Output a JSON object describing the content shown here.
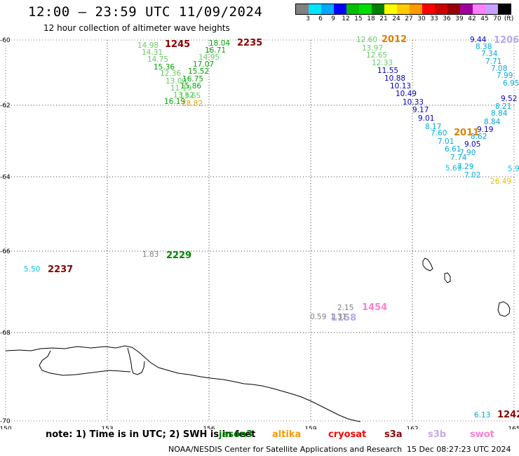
{
  "title": "12:00 – 23:59 UTC 11/09/2024",
  "subtitle": "12 hour collection of altimeter wave heights",
  "legend": {
    "colors": [
      "#808080",
      "#00e5ff",
      "#00aaff",
      "#0000ff",
      "#00c000",
      "#00e000",
      "#008000",
      "#ffff00",
      "#ffcc00",
      "#ff9900",
      "#ff0000",
      "#cc0000",
      "#990000",
      "#a000a0",
      "#ff80ff",
      "#c8a0ff",
      "#000000"
    ],
    "ticks": [
      "3",
      "6",
      "9",
      "12",
      "15",
      "18",
      "21",
      "24",
      "27",
      "30",
      "33",
      "36",
      "39",
      "42",
      "45",
      "70"
    ],
    "unit": "(ft)"
  },
  "map": {
    "lon_ticks": [
      "150",
      "153",
      "156",
      "159",
      "162",
      "165"
    ],
    "lat_ticks": [
      "-60",
      "-62",
      "-64",
      "-66",
      "-68",
      "-70"
    ]
  },
  "passes": [
    {
      "label": "1245",
      "color": "#8b0000"
    },
    {
      "label": "2235",
      "color": "#8b0000"
    },
    {
      "label": "2012",
      "color": "#e08000"
    },
    {
      "label": "1206",
      "color": "#b8a8e8"
    },
    {
      "label": "2011",
      "color": "#e08000"
    },
    {
      "label": "2229",
      "color": "#008000"
    },
    {
      "label": "2237",
      "color": "#8b0000"
    },
    {
      "label": "1454",
      "color": "#ff80d0"
    },
    {
      "label": "1158",
      "color": "#b8a8e8"
    },
    {
      "label": "1242",
      "color": "#8b0000"
    }
  ],
  "track_values": [
    {
      "v": "14.98",
      "c": "#66cc66"
    },
    {
      "v": "14.31",
      "c": "#66cc66"
    },
    {
      "v": "14.75",
      "c": "#66cc66"
    },
    {
      "v": "15.36",
      "c": "#00a000"
    },
    {
      "v": "12.36",
      "c": "#66cc66"
    },
    {
      "v": "13.00",
      "c": "#66cc66"
    },
    {
      "v": "11.19",
      "c": "#66cc66"
    },
    {
      "v": "13.62",
      "c": "#66cc66"
    },
    {
      "v": "16.19",
      "c": "#00a000"
    },
    {
      "v": "18.04",
      "c": "#00a000"
    },
    {
      "v": "16.71",
      "c": "#00a000"
    },
    {
      "v": "14.95",
      "c": "#66cc66"
    },
    {
      "v": "17.07",
      "c": "#00a000"
    },
    {
      "v": "15.52",
      "c": "#00a000"
    },
    {
      "v": "16.75",
      "c": "#00a000"
    },
    {
      "v": "15.86",
      "c": "#00a000"
    },
    {
      "v": "13.65",
      "c": "#66cc66"
    },
    {
      "v": "28.82",
      "c": "#e0a000"
    },
    {
      "v": "12.60",
      "c": "#66cc66"
    },
    {
      "v": "13.97",
      "c": "#66cc66"
    },
    {
      "v": "12.65",
      "c": "#66cc66"
    },
    {
      "v": "12.33",
      "c": "#66cc66"
    },
    {
      "v": "11.55",
      "c": "#0000c0"
    },
    {
      "v": "10.88",
      "c": "#0000c0"
    },
    {
      "v": "10.13",
      "c": "#0000c0"
    },
    {
      "v": "10.49",
      "c": "#0000c0"
    },
    {
      "v": "10.33",
      "c": "#0000c0"
    },
    {
      "v": "9.17",
      "c": "#0000c0"
    },
    {
      "v": "9.01",
      "c": "#0000c0"
    },
    {
      "v": "8.17",
      "c": "#00aadd"
    },
    {
      "v": "7.60",
      "c": "#00aadd"
    },
    {
      "v": "7.01",
      "c": "#00aadd"
    },
    {
      "v": "6.61",
      "c": "#00aadd"
    },
    {
      "v": "7.74",
      "c": "#00aadd"
    },
    {
      "v": "5.69",
      "c": "#00c8e8"
    },
    {
      "v": "7.02",
      "c": "#00aadd"
    },
    {
      "v": "9.44",
      "c": "#0000c0"
    },
    {
      "v": "8.38",
      "c": "#00aadd"
    },
    {
      "v": "7.34",
      "c": "#00aadd"
    },
    {
      "v": "7.71",
      "c": "#00aadd"
    },
    {
      "v": "7.08",
      "c": "#00aadd"
    },
    {
      "v": "7.99",
      "c": "#00aadd"
    },
    {
      "v": "6.95",
      "c": "#00aadd"
    },
    {
      "v": "9.52",
      "c": "#0000c0"
    },
    {
      "v": "8.21",
      "c": "#00aadd"
    },
    {
      "v": "8.84",
      "c": "#00aadd"
    },
    {
      "v": "8.84",
      "c": "#00aadd"
    },
    {
      "v": "9.19",
      "c": "#0000c0"
    },
    {
      "v": "8.62",
      "c": "#00aadd"
    },
    {
      "v": "9.05",
      "c": "#0000c0"
    },
    {
      "v": "7.90",
      "c": "#00aadd"
    },
    {
      "v": "7.29",
      "c": "#00aadd"
    },
    {
      "v": "5.9",
      "c": "#00c8e8"
    },
    {
      "v": "26.49",
      "c": "#e0c000"
    },
    {
      "v": "1.83",
      "c": "#808080"
    },
    {
      "v": "5.50",
      "c": "#00c8e8"
    },
    {
      "v": "2.15",
      "c": "#808080"
    },
    {
      "v": "0.59",
      "c": "#808080"
    },
    {
      "v": "1.31",
      "c": "#808080"
    },
    {
      "v": "6.13",
      "c": "#00aadd"
    }
  ],
  "footer": {
    "note": "note:  1) Time is in UTC;  2) SWH is in feet",
    "satellites": [
      {
        "name": "jason3",
        "color": "#008000"
      },
      {
        "name": "altika",
        "color": "#ff9900"
      },
      {
        "name": "cryosat",
        "color": "#ff0000"
      },
      {
        "name": "s3a",
        "color": "#8b0000"
      },
      {
        "name": "s3b",
        "color": "#c8a8e8"
      },
      {
        "name": "swot",
        "color": "#ff80d0"
      }
    ],
    "credit": "NOAA/NESDIS Center for Satellite Applications and Research",
    "timestamp": "15 Dec 08:27:23 UTC 2024"
  }
}
